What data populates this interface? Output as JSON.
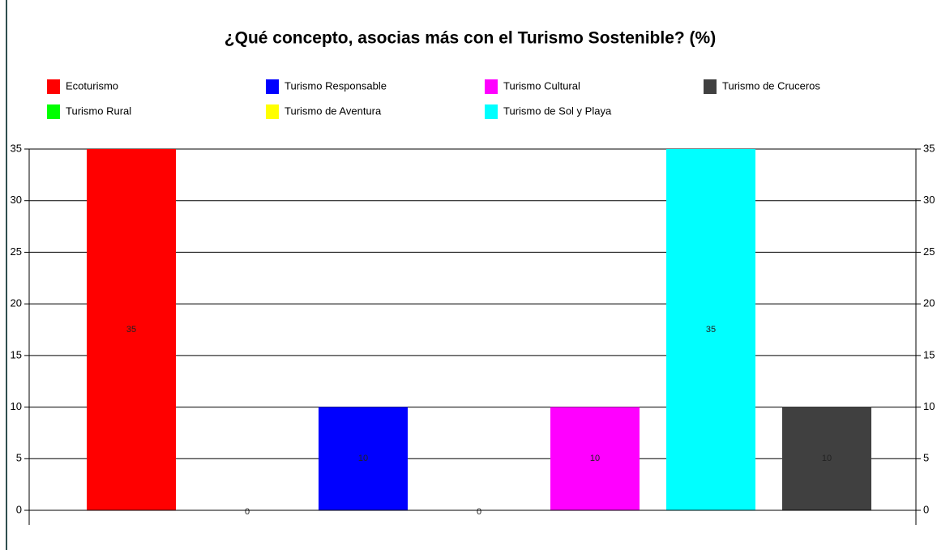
{
  "chart_data": {
    "type": "bar",
    "title": "¿Qué concepto, asocias más con el Turismo Sostenible? (%)",
    "series": [
      {
        "name": "Ecoturismo",
        "color": "#ff0000",
        "values": [
          35
        ]
      },
      {
        "name": "Turismo Rural",
        "color": "#00ff00",
        "values": [
          0
        ]
      },
      {
        "name": "Turismo Responsable",
        "color": "#0000ff",
        "values": [
          10
        ]
      },
      {
        "name": "Turismo de Aventura",
        "color": "#ffff00",
        "values": [
          0
        ]
      },
      {
        "name": "Turismo Cultural",
        "color": "#ff00ff",
        "values": [
          10
        ]
      },
      {
        "name": "Turismo de Sol y Playa",
        "color": "#00ffff",
        "values": [
          35
        ]
      },
      {
        "name": "Turismo de Cruceros",
        "color": "#404040",
        "values": [
          10
        ]
      }
    ],
    "ylim": [
      0,
      35
    ],
    "yticks": [
      0,
      5,
      10,
      15,
      20,
      25,
      30,
      35
    ],
    "y2lim": [
      0,
      35
    ],
    "y2ticks": [
      0,
      5,
      10,
      15,
      20,
      25,
      30,
      35
    ],
    "grid": true,
    "legend": "top"
  }
}
